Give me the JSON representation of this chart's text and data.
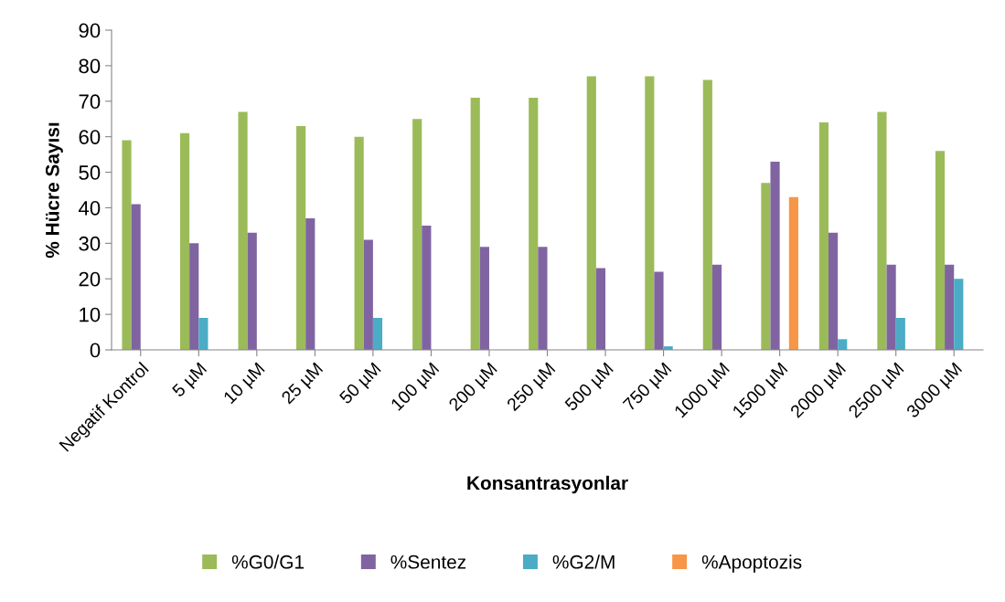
{
  "chart_data": {
    "type": "bar",
    "xlabel": "Konsantrasyonlar",
    "ylabel": "% Hücre Sayısı",
    "categories": [
      "Negatif Kontrol",
      "5 µM",
      "10 µM",
      "25 µM",
      "50 µM",
      "100 µM",
      "200 µM",
      "250 µM",
      "500 µM",
      "750 µM",
      "1000 µM",
      "1500 µM",
      "2000 µM",
      "2500 µM",
      "3000 µM"
    ],
    "series": [
      {
        "name": "%G0/G1",
        "color": "#9bbb59",
        "values": [
          59,
          61,
          67,
          63,
          60,
          65,
          71,
          71,
          77,
          77,
          76,
          47,
          64,
          67,
          56
        ]
      },
      {
        "name": "%Sentez",
        "color": "#8064a2",
        "values": [
          41,
          30,
          33,
          37,
          31,
          35,
          29,
          29,
          23,
          22,
          24,
          53,
          33,
          24,
          24
        ]
      },
      {
        "name": "%G2/M",
        "color": "#4bacc6",
        "values": [
          0,
          9,
          0,
          0,
          9,
          0,
          0,
          0,
          0,
          1,
          0,
          0,
          3,
          9,
          20
        ]
      },
      {
        "name": "%Apoptozis",
        "color": "#f79646",
        "values": [
          0,
          0,
          0,
          0,
          0,
          0,
          0,
          0,
          0,
          0,
          0,
          43,
          0,
          0,
          0
        ]
      }
    ],
    "ylim": [
      0,
      90
    ],
    "yticks": [
      0,
      10,
      20,
      30,
      40,
      50,
      60,
      70,
      80,
      90
    ],
    "grid": false,
    "legend": "bottom"
  }
}
